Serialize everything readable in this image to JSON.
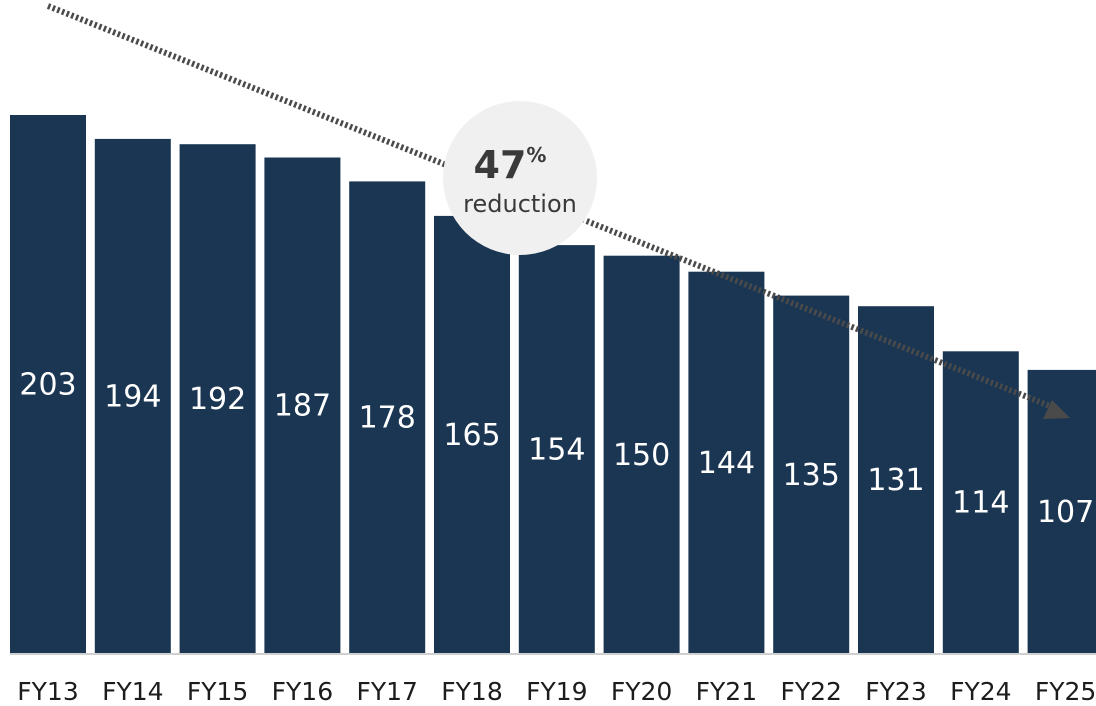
{
  "chart_data": {
    "type": "bar",
    "categories": [
      "FY13",
      "FY14",
      "FY15",
      "FY16",
      "FY17",
      "FY18",
      "FY19",
      "FY20",
      "FY21",
      "FY22",
      "FY23",
      "FY24",
      "FY25"
    ],
    "values": [
      203,
      194,
      192,
      187,
      178,
      165,
      154,
      150,
      144,
      135,
      131,
      114,
      107
    ],
    "bar_color": "#1b3652",
    "ylim": [
      0,
      220
    ],
    "grid": false,
    "annotation": {
      "value": "47",
      "unit": "%",
      "label": "reduction",
      "arrow": "dotted-downward-trend",
      "bubble_color": "#f0f0f0",
      "arrow_color": "#4a4a4a"
    }
  }
}
